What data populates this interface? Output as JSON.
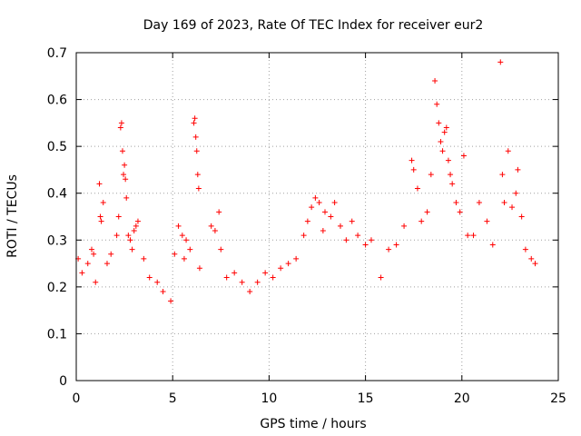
{
  "chart_data": {
    "type": "scatter",
    "title": "Day 169 of 2023, Rate Of TEC Index for receiver eur2",
    "xlabel": "GPS time / hours",
    "ylabel": "ROTI / TECUs",
    "xlim": [
      0,
      25
    ],
    "ylim": [
      0,
      0.7
    ],
    "x_ticks": [
      "0",
      "5",
      "10",
      "15",
      "20",
      "25"
    ],
    "y_ticks": [
      "0",
      "0.1",
      "0.2",
      "0.3",
      "0.4",
      "0.5",
      "0.6",
      "0.7"
    ],
    "grid": true,
    "legend": "none",
    "marker": "plus",
    "colors": {
      "series": "#ff0000",
      "grid": "#a0a0a0"
    },
    "series": [
      {
        "name": "",
        "points": [
          [
            0.1,
            0.26
          ],
          [
            0.3,
            0.23
          ],
          [
            0.6,
            0.25
          ],
          [
            0.8,
            0.28
          ],
          [
            0.9,
            0.27
          ],
          [
            1.0,
            0.21
          ],
          [
            1.2,
            0.42
          ],
          [
            1.25,
            0.35
          ],
          [
            1.3,
            0.34
          ],
          [
            1.4,
            0.38
          ],
          [
            1.6,
            0.25
          ],
          [
            1.8,
            0.27
          ],
          [
            2.1,
            0.31
          ],
          [
            2.2,
            0.35
          ],
          [
            2.3,
            0.54
          ],
          [
            2.35,
            0.55
          ],
          [
            2.4,
            0.49
          ],
          [
            2.45,
            0.44
          ],
          [
            2.5,
            0.46
          ],
          [
            2.55,
            0.43
          ],
          [
            2.6,
            0.39
          ],
          [
            2.7,
            0.31
          ],
          [
            2.8,
            0.3
          ],
          [
            2.9,
            0.28
          ],
          [
            3.0,
            0.32
          ],
          [
            3.1,
            0.33
          ],
          [
            3.2,
            0.34
          ],
          [
            3.5,
            0.26
          ],
          [
            3.8,
            0.22
          ],
          [
            4.2,
            0.21
          ],
          [
            4.5,
            0.19
          ],
          [
            4.9,
            0.17
          ],
          [
            5.1,
            0.27
          ],
          [
            5.3,
            0.33
          ],
          [
            5.5,
            0.31
          ],
          [
            5.6,
            0.26
          ],
          [
            5.7,
            0.3
          ],
          [
            5.9,
            0.28
          ],
          [
            6.1,
            0.55
          ],
          [
            6.15,
            0.56
          ],
          [
            6.2,
            0.52
          ],
          [
            6.25,
            0.49
          ],
          [
            6.3,
            0.44
          ],
          [
            6.35,
            0.41
          ],
          [
            6.4,
            0.24
          ],
          [
            7.0,
            0.33
          ],
          [
            7.2,
            0.32
          ],
          [
            7.4,
            0.36
          ],
          [
            7.5,
            0.28
          ],
          [
            7.8,
            0.22
          ],
          [
            8.2,
            0.23
          ],
          [
            8.6,
            0.21
          ],
          [
            9.0,
            0.19
          ],
          [
            9.4,
            0.21
          ],
          [
            9.8,
            0.23
          ],
          [
            10.2,
            0.22
          ],
          [
            10.6,
            0.24
          ],
          [
            11.0,
            0.25
          ],
          [
            11.4,
            0.26
          ],
          [
            11.8,
            0.31
          ],
          [
            12.0,
            0.34
          ],
          [
            12.2,
            0.37
          ],
          [
            12.4,
            0.39
          ],
          [
            12.6,
            0.38
          ],
          [
            12.8,
            0.32
          ],
          [
            12.9,
            0.36
          ],
          [
            13.2,
            0.35
          ],
          [
            13.4,
            0.38
          ],
          [
            13.7,
            0.33
          ],
          [
            14.0,
            0.3
          ],
          [
            14.3,
            0.34
          ],
          [
            14.6,
            0.31
          ],
          [
            15.0,
            0.29
          ],
          [
            15.3,
            0.3
          ],
          [
            15.8,
            0.22
          ],
          [
            16.2,
            0.28
          ],
          [
            16.6,
            0.29
          ],
          [
            17.0,
            0.33
          ],
          [
            17.4,
            0.47
          ],
          [
            17.5,
            0.45
          ],
          [
            17.7,
            0.41
          ],
          [
            17.9,
            0.34
          ],
          [
            18.2,
            0.36
          ],
          [
            18.4,
            0.44
          ],
          [
            18.6,
            0.64
          ],
          [
            18.7,
            0.59
          ],
          [
            18.8,
            0.55
          ],
          [
            18.9,
            0.51
          ],
          [
            19.0,
            0.49
          ],
          [
            19.1,
            0.53
          ],
          [
            19.2,
            0.54
          ],
          [
            19.3,
            0.47
          ],
          [
            19.4,
            0.44
          ],
          [
            19.5,
            0.42
          ],
          [
            19.7,
            0.38
          ],
          [
            19.9,
            0.36
          ],
          [
            20.1,
            0.48
          ],
          [
            20.3,
            0.31
          ],
          [
            20.6,
            0.31
          ],
          [
            20.9,
            0.38
          ],
          [
            21.3,
            0.34
          ],
          [
            21.6,
            0.29
          ],
          [
            22.0,
            0.68
          ],
          [
            22.1,
            0.44
          ],
          [
            22.2,
            0.38
          ],
          [
            22.4,
            0.49
          ],
          [
            22.6,
            0.37
          ],
          [
            22.8,
            0.4
          ],
          [
            22.9,
            0.45
          ],
          [
            23.1,
            0.35
          ],
          [
            23.3,
            0.28
          ],
          [
            23.6,
            0.26
          ],
          [
            23.8,
            0.25
          ]
        ]
      }
    ]
  }
}
